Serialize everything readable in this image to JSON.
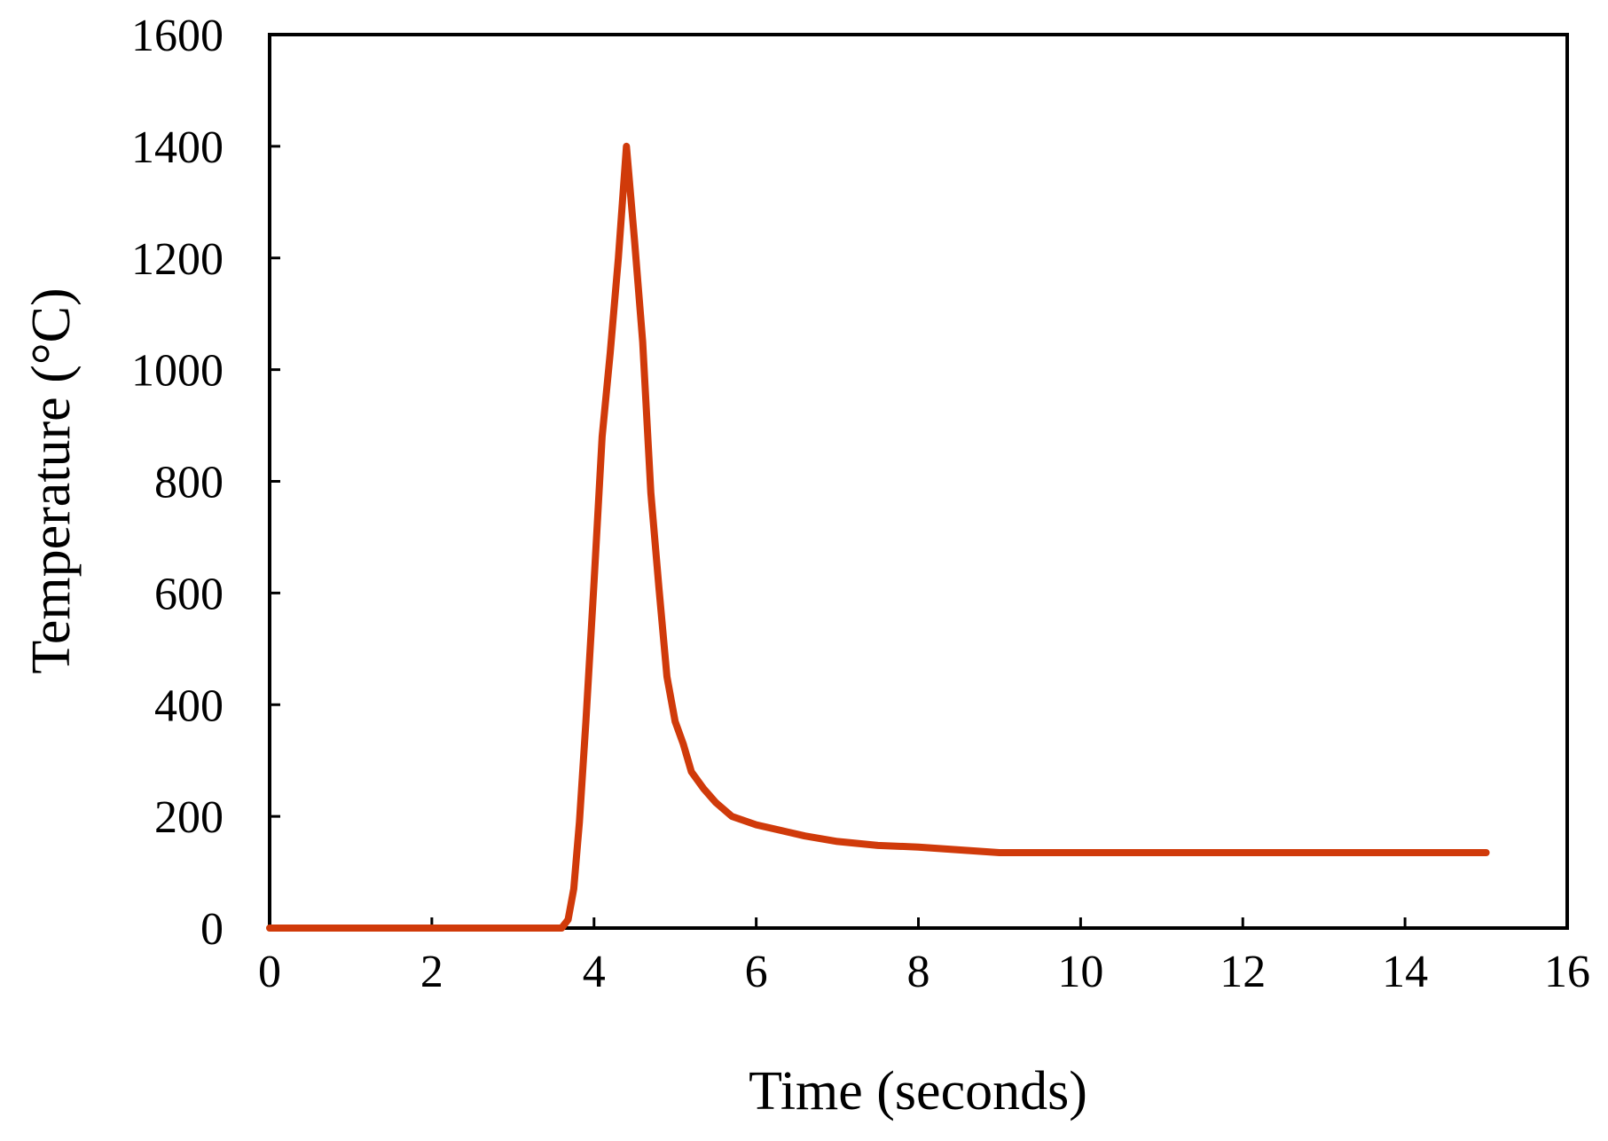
{
  "chart_data": {
    "type": "line",
    "title": "",
    "xlabel": "Time (seconds)",
    "ylabel": "Temperature (°C)",
    "xlim": [
      0,
      16
    ],
    "ylim": [
      0,
      1600
    ],
    "xticks": [
      0,
      2,
      4,
      6,
      8,
      10,
      12,
      14,
      16
    ],
    "yticks": [
      0,
      200,
      400,
      600,
      800,
      1000,
      1200,
      1400,
      1600
    ],
    "grid": false,
    "legend": "none",
    "series": [
      {
        "color": "#d03a0a",
        "x": [
          0,
          3.6,
          3.68,
          3.75,
          3.82,
          3.9,
          4.0,
          4.1,
          4.2,
          4.3,
          4.4,
          4.5,
          4.6,
          4.7,
          4.8,
          4.9,
          5.0,
          5.1,
          5.2,
          5.35,
          5.5,
          5.7,
          6.0,
          6.3,
          6.6,
          7.0,
          7.5,
          8.0,
          8.5,
          9.0,
          10.0,
          12.0,
          14.0,
          15.0
        ],
        "y": [
          0,
          0,
          15,
          70,
          190,
          370,
          620,
          880,
          1030,
          1200,
          1400,
          1230,
          1050,
          780,
          610,
          450,
          370,
          330,
          280,
          250,
          225,
          200,
          185,
          175,
          165,
          155,
          148,
          145,
          140,
          135,
          135,
          135,
          135,
          135
        ]
      }
    ]
  }
}
